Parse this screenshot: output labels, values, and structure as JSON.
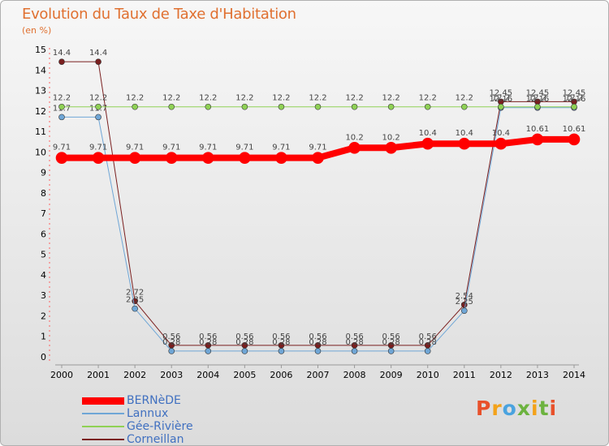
{
  "title": "Evolution du Taux de Taxe d'Habitation",
  "unit_label": "(en %)",
  "brand": {
    "text": "Proxiti",
    "colors": [
      "#e8502a",
      "#f3a21a",
      "#4aa3df",
      "#6cb33f",
      "#f3a21a",
      "#6cb33f",
      "#e8502a"
    ]
  },
  "chart_data": {
    "type": "line",
    "x": [
      "2000",
      "2001",
      "2002",
      "2003",
      "2004",
      "2005",
      "2006",
      "2007",
      "2008",
      "2009",
      "2010",
      "2011",
      "2012",
      "2013",
      "2014"
    ],
    "ylim": [
      0,
      15
    ],
    "yticks": [
      "0",
      "1",
      "2",
      "3",
      "4",
      "5",
      "6",
      "7",
      "8",
      "9",
      "10",
      "11",
      "12",
      "13",
      "14",
      "15"
    ],
    "grid": false,
    "legend_position": "bottom-left",
    "series": [
      {
        "name": "Corneillan",
        "color": "#7a1f1f",
        "width": 1,
        "marker": 3.5,
        "values": [
          14.4,
          14.4,
          2.72,
          0.56,
          0.56,
          0.56,
          0.56,
          0.56,
          0.56,
          0.56,
          0.56,
          2.54,
          12.45,
          12.45,
          12.45
        ],
        "labels": [
          "14.4",
          "14.4",
          "2.72",
          "0.56",
          "0.56",
          "0.56",
          "0.56",
          "0.56",
          "0.56",
          "0.56",
          "0.56",
          "2.54",
          "12.45",
          "12.45",
          "12.45"
        ]
      },
      {
        "name": "Lannux",
        "color": "#6fa6d6",
        "width": 1,
        "marker": 3.5,
        "values": [
          11.7,
          11.7,
          2.35,
          0.28,
          0.28,
          0.28,
          0.28,
          0.28,
          0.28,
          0.28,
          0.28,
          2.25,
          12.16,
          12.16,
          12.16
        ],
        "labels": [
          "11.7",
          "11.7",
          "2.35",
          "0.28",
          "0.28",
          "0.28",
          "0.28",
          "0.28",
          "0.28",
          "0.28",
          "0.28",
          "2.25",
          "12.16",
          "12.16",
          "12.16"
        ]
      },
      {
        "name": "Gée-Rivière",
        "color": "#8fd155",
        "width": 1,
        "marker": 3.5,
        "values": [
          12.2,
          12.2,
          12.2,
          12.2,
          12.2,
          12.2,
          12.2,
          12.2,
          12.2,
          12.2,
          12.2,
          12.2,
          12.2,
          12.2,
          12.2
        ],
        "labels": [
          "12.2",
          "12.2",
          "12.2",
          "12.2",
          "12.2",
          "12.2",
          "12.2",
          "12.2",
          "12.2",
          "12.2",
          "12.2",
          "12.2",
          "12.2",
          "12.2",
          "12.2"
        ]
      },
      {
        "name": "BERNèDE",
        "color": "#ff0000",
        "width": 8,
        "marker": 7,
        "values": [
          9.71,
          9.71,
          9.71,
          9.71,
          9.71,
          9.71,
          9.71,
          9.71,
          10.2,
          10.2,
          10.4,
          10.4,
          10.4,
          10.61,
          10.61
        ],
        "labels": [
          "9.71",
          "9.71",
          "9.71",
          "9.71",
          "9.71",
          "9.71",
          "9.71",
          "9.71",
          "10.2",
          "10.2",
          "10.4",
          "10.4",
          "10.4",
          "10.61",
          "10.61"
        ]
      }
    ],
    "legend": [
      {
        "name": "BERNèDE",
        "color": "#ff0000",
        "thick": true
      },
      {
        "name": "Lannux",
        "color": "#6fa6d6",
        "thick": false
      },
      {
        "name": "Gée-Rivière",
        "color": "#8fd155",
        "thick": false
      },
      {
        "name": "Corneillan",
        "color": "#7a1f1f",
        "thick": false
      }
    ]
  }
}
